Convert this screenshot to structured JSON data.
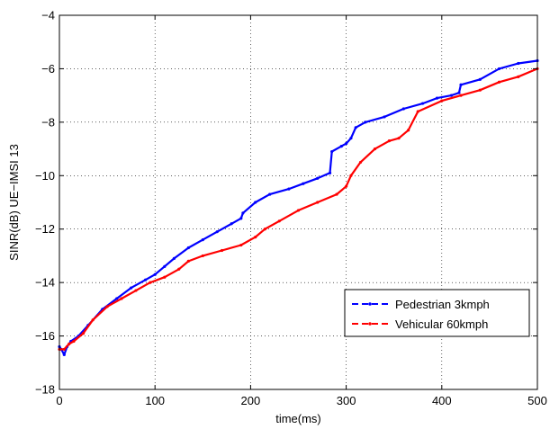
{
  "chart_data": {
    "type": "line",
    "title": "",
    "xlabel": "time(ms)",
    "ylabel": "SINR(dB) UE−IMSI 13",
    "xlim": [
      0,
      500
    ],
    "ylim": [
      -18,
      -4
    ],
    "xticks": [
      0,
      100,
      200,
      300,
      400,
      500
    ],
    "yticks": [
      -18,
      -16,
      -14,
      -12,
      -10,
      -8,
      -6,
      -4
    ],
    "xtick_labels": [
      "0",
      "100",
      "200",
      "300",
      "400",
      "500"
    ],
    "ytick_labels": [
      "−18",
      "−16",
      "−14",
      "−12",
      "−10",
      "−8",
      "−6",
      "−4"
    ],
    "grid": true,
    "legend_position": "bottom-right",
    "series": [
      {
        "name": "Pedestrian 3kmph",
        "color": "#0000ff",
        "style": "dashed-markers",
        "x": [
          0,
          2,
          5,
          8,
          12,
          20,
          30,
          45,
          60,
          75,
          90,
          100,
          110,
          120,
          135,
          150,
          165,
          180,
          190,
          192,
          205,
          220,
          240,
          255,
          270,
          283,
          285,
          295,
          300,
          305,
          310,
          320,
          340,
          360,
          380,
          395,
          410,
          418,
          420,
          440,
          460,
          480,
          500
        ],
        "y": [
          -16.4,
          -16.5,
          -16.7,
          -16.4,
          -16.2,
          -16.0,
          -15.6,
          -15.0,
          -14.6,
          -14.2,
          -13.9,
          -13.7,
          -13.4,
          -13.1,
          -12.7,
          -12.4,
          -12.1,
          -11.8,
          -11.6,
          -11.4,
          -11.0,
          -10.7,
          -10.5,
          -10.3,
          -10.1,
          -9.9,
          -9.1,
          -8.9,
          -8.8,
          -8.6,
          -8.2,
          -8.0,
          -7.8,
          -7.5,
          -7.3,
          -7.1,
          -7.0,
          -6.9,
          -6.6,
          -6.4,
          -6.0,
          -5.8,
          -5.7
        ]
      },
      {
        "name": "Vehicular 60kmph",
        "color": "#ff0000",
        "style": "dashed-markers",
        "x": [
          0,
          5,
          10,
          15,
          25,
          35,
          50,
          65,
          80,
          95,
          110,
          125,
          135,
          150,
          170,
          190,
          205,
          215,
          230,
          250,
          270,
          290,
          300,
          305,
          315,
          330,
          345,
          355,
          365,
          375,
          400,
          420,
          440,
          460,
          480,
          500
        ],
        "y": [
          -16.5,
          -16.5,
          -16.3,
          -16.2,
          -15.9,
          -15.4,
          -14.9,
          -14.6,
          -14.3,
          -14.0,
          -13.8,
          -13.5,
          -13.2,
          -13.0,
          -12.8,
          -12.6,
          -12.3,
          -12.0,
          -11.7,
          -11.3,
          -11.0,
          -10.7,
          -10.4,
          -10.0,
          -9.5,
          -9.0,
          -8.7,
          -8.6,
          -8.3,
          -7.6,
          -7.2,
          -7.0,
          -6.8,
          -6.5,
          -6.3,
          -6.0
        ]
      }
    ]
  }
}
